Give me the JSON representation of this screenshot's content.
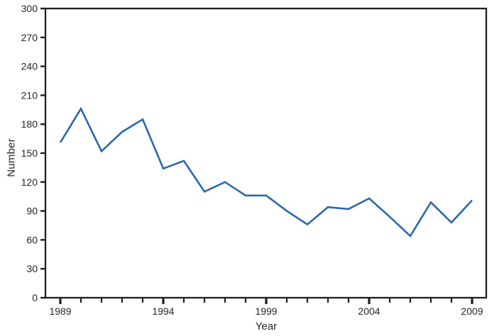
{
  "chart_data": {
    "type": "line",
    "title": "",
    "xlabel": "Year",
    "ylabel": "Number",
    "x": [
      1989,
      1990,
      1991,
      1992,
      1993,
      1994,
      1995,
      1996,
      1997,
      1998,
      1999,
      2000,
      2001,
      2002,
      2003,
      2004,
      2005,
      2006,
      2007,
      2008,
      2009
    ],
    "values": [
      161,
      196,
      152,
      172,
      185,
      134,
      142,
      110,
      120,
      106,
      106,
      90,
      76,
      94,
      92,
      103,
      84,
      64,
      99,
      78,
      101
    ],
    "ylim": [
      0,
      300
    ],
    "y_tick_step": 30,
    "x_major_ticks": [
      1989,
      1994,
      1999,
      2004,
      2009
    ],
    "grid": "off",
    "legend": "none",
    "line_color": "#2a67ad",
    "axis_color": "#231f20",
    "text_color": "#26242c",
    "background_color": "#ffffff"
  }
}
